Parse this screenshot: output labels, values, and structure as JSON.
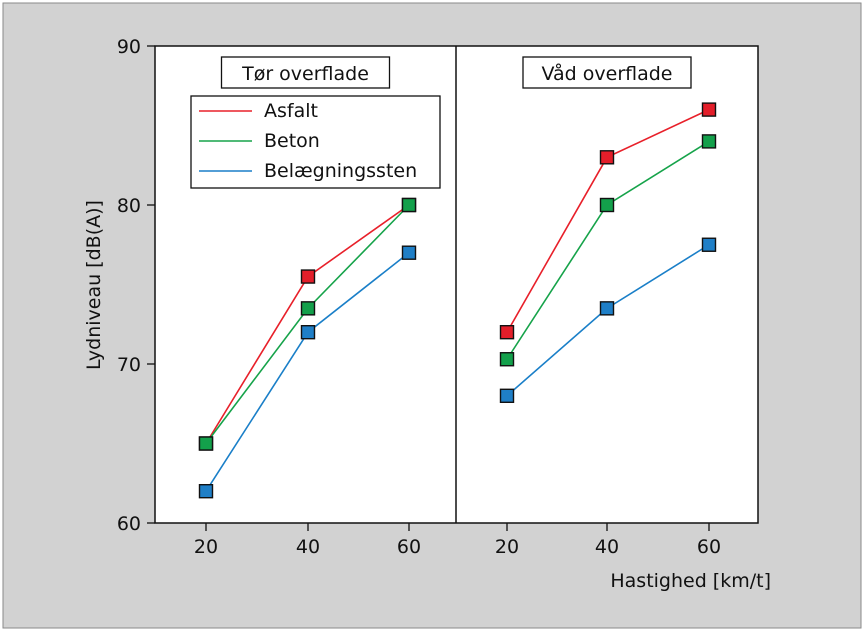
{
  "chart_data": {
    "type": "line",
    "ylabel": "Lydniveau [dB(A)]",
    "xlabel": "Hastighed [km/t]",
    "ylim": [
      60,
      90
    ],
    "yticks": [
      60,
      70,
      80,
      90
    ],
    "grid": false,
    "legend_position": "top-left",
    "series_styles": [
      {
        "name": "Asfalt",
        "line_color": "#e8202a",
        "marker_color": "#e31e2a"
      },
      {
        "name": "Beton",
        "line_color": "#16a34a",
        "marker_color": "#13a04b"
      },
      {
        "name": "Belægningssten",
        "line_color": "#1a7fc8",
        "marker_color": "#1f7fc7"
      }
    ],
    "panels": [
      {
        "title": "Tør overflade",
        "x": [
          20,
          40,
          60
        ],
        "series": [
          {
            "name": "Asfalt",
            "values": [
              65,
              75.5,
              80
            ]
          },
          {
            "name": "Beton",
            "values": [
              65,
              73.5,
              80
            ]
          },
          {
            "name": "Belægningssten",
            "values": [
              62,
              72,
              77
            ]
          }
        ]
      },
      {
        "title": "Våd overflade",
        "x": [
          20,
          40,
          60
        ],
        "series": [
          {
            "name": "Asfalt",
            "values": [
              72,
              83,
              86
            ]
          },
          {
            "name": "Beton",
            "values": [
              70.3,
              80,
              84
            ]
          },
          {
            "name": "Belægningssten",
            "values": [
              68,
              73.5,
              77.5
            ]
          }
        ]
      }
    ]
  }
}
